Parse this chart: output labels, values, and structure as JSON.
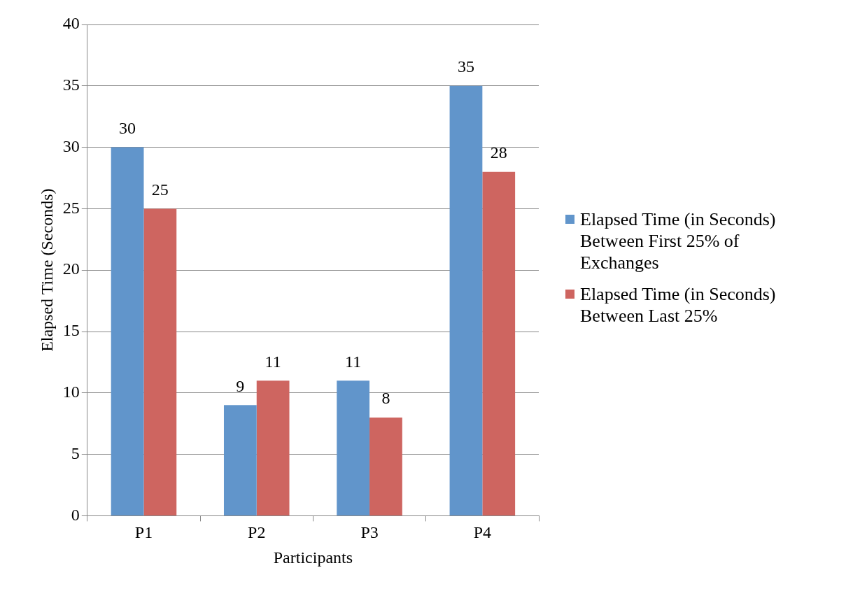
{
  "chart_data": {
    "type": "bar",
    "xlabel": "Participants",
    "ylabel": "Elapsed Time (Seconds)",
    "categories": [
      "P1",
      "P2",
      "P3",
      "P4"
    ],
    "series": [
      {
        "name": "Elapsed Time (in Seconds) Between First 25% of Exchanges",
        "color": "#6195cb",
        "values": [
          30,
          9,
          11,
          35
        ]
      },
      {
        "name": "Elapsed Time (in Seconds) Between Last 25%",
        "color": "#ce6560",
        "values": [
          25,
          11,
          8,
          28
        ]
      }
    ],
    "ylim": [
      0,
      40
    ],
    "yticks": [
      0,
      5,
      10,
      15,
      20,
      25,
      30,
      35,
      40
    ],
    "grid": "y",
    "legend": "right",
    "data_labels": true
  }
}
